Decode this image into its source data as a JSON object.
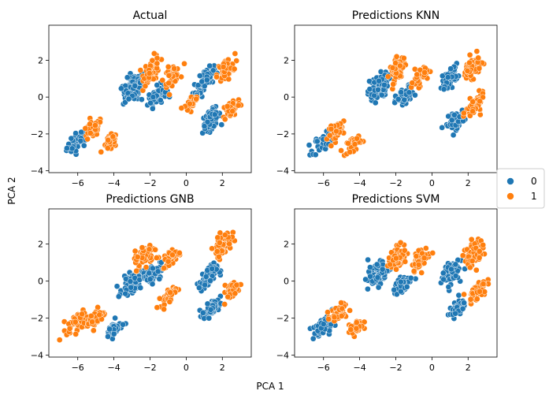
{
  "figure": {
    "xlabel": "PCA 1",
    "ylabel": "PCA 2",
    "legend": {
      "entries": [
        {
          "label": "0",
          "color": "#1f77b4"
        },
        {
          "label": "1",
          "color": "#ff7f0e"
        }
      ],
      "placement": "right-center"
    }
  },
  "chart_data": [
    {
      "type": "scatter",
      "title": "Actual",
      "xlim": [
        -7.6,
        3.6
      ],
      "ylim": [
        -4.1,
        3.9
      ],
      "xticks": [
        -6,
        -4,
        -2,
        0,
        2
      ],
      "yticks": [
        -4,
        -2,
        0,
        2
      ],
      "series": [
        {
          "name": "0",
          "color": "#1f77b4",
          "clusters": [
            {
              "center": [
                -6.0,
                -2.4
              ],
              "spread": [
                0.55,
                0.45
              ],
              "count": 40
            },
            {
              "center": [
                -2.9,
                0.5
              ],
              "spread": [
                0.55,
                0.65
              ],
              "count": 110
            },
            {
              "center": [
                -1.6,
                0.1
              ],
              "spread": [
                0.45,
                0.45
              ],
              "count": 60
            },
            {
              "center": [
                1.1,
                1.0
              ],
              "spread": [
                0.4,
                0.45
              ],
              "count": 60
            },
            {
              "center": [
                1.4,
                -1.2
              ],
              "spread": [
                0.45,
                0.45
              ],
              "count": 70
            },
            {
              "center": [
                0.6,
                0.2
              ],
              "spread": [
                0.3,
                0.3
              ],
              "count": 25
            }
          ]
        },
        {
          "name": "1",
          "color": "#ff7f0e",
          "clusters": [
            {
              "center": [
                -5.2,
                -1.8
              ],
              "spread": [
                0.5,
                0.4
              ],
              "count": 40
            },
            {
              "center": [
                -4.2,
                -2.5
              ],
              "spread": [
                0.35,
                0.35
              ],
              "count": 35
            },
            {
              "center": [
                -1.9,
                1.5
              ],
              "spread": [
                0.4,
                0.6
              ],
              "count": 60
            },
            {
              "center": [
                -0.8,
                1.2
              ],
              "spread": [
                0.4,
                0.45
              ],
              "count": 40
            },
            {
              "center": [
                2.2,
                1.5
              ],
              "spread": [
                0.45,
                0.5
              ],
              "count": 60
            },
            {
              "center": [
                2.5,
                -0.6
              ],
              "spread": [
                0.45,
                0.45
              ],
              "count": 55
            },
            {
              "center": [
                0.3,
                -0.3
              ],
              "spread": [
                0.35,
                0.3
              ],
              "count": 30
            }
          ]
        }
      ]
    },
    {
      "type": "scatter",
      "title": "Predictions KNN",
      "xlim": [
        -7.6,
        3.6
      ],
      "ylim": [
        -4.1,
        3.9
      ],
      "xticks": [
        -6,
        -4,
        -2,
        0,
        2
      ],
      "yticks": [
        -4,
        -2,
        0,
        2
      ],
      "series": [
        {
          "name": "0",
          "color": "#1f77b4",
          "clusters": [
            {
              "center": [
                -6.0,
                -2.4
              ],
              "spread": [
                0.55,
                0.45
              ],
              "count": 40
            },
            {
              "center": [
                -3.0,
                0.5
              ],
              "spread": [
                0.5,
                0.6
              ],
              "count": 110
            },
            {
              "center": [
                -1.5,
                0.0
              ],
              "spread": [
                0.45,
                0.45
              ],
              "count": 60
            },
            {
              "center": [
                1.0,
                1.1
              ],
              "spread": [
                0.4,
                0.45
              ],
              "count": 60
            },
            {
              "center": [
                1.3,
                -1.3
              ],
              "spread": [
                0.45,
                0.4
              ],
              "count": 70
            }
          ]
        },
        {
          "name": "1",
          "color": "#ff7f0e",
          "clusters": [
            {
              "center": [
                -5.2,
                -1.8
              ],
              "spread": [
                0.5,
                0.4
              ],
              "count": 40
            },
            {
              "center": [
                -4.3,
                -2.5
              ],
              "spread": [
                0.35,
                0.35
              ],
              "count": 35
            },
            {
              "center": [
                -1.9,
                1.5
              ],
              "spread": [
                0.4,
                0.55
              ],
              "count": 60
            },
            {
              "center": [
                -0.7,
                1.1
              ],
              "spread": [
                0.4,
                0.45
              ],
              "count": 40
            },
            {
              "center": [
                2.2,
                1.6
              ],
              "spread": [
                0.45,
                0.5
              ],
              "count": 60
            },
            {
              "center": [
                2.4,
                -0.5
              ],
              "spread": [
                0.45,
                0.45
              ],
              "count": 55
            }
          ]
        }
      ]
    },
    {
      "type": "scatter",
      "title": "Predictions GNB",
      "xlim": [
        -7.6,
        3.6
      ],
      "ylim": [
        -4.1,
        3.9
      ],
      "xticks": [
        -6,
        -4,
        -2,
        0,
        2
      ],
      "yticks": [
        -4,
        -2,
        0,
        2
      ],
      "series": [
        {
          "name": "0",
          "color": "#1f77b4",
          "clusters": [
            {
              "center": [
                -4.0,
                -2.6
              ],
              "spread": [
                0.4,
                0.4
              ],
              "count": 40
            },
            {
              "center": [
                -3.0,
                -0.1
              ],
              "spread": [
                0.5,
                0.45
              ],
              "count": 70
            },
            {
              "center": [
                -1.9,
                0.4
              ],
              "spread": [
                0.45,
                0.45
              ],
              "count": 60
            },
            {
              "center": [
                1.2,
                0.2
              ],
              "spread": [
                0.45,
                0.5
              ],
              "count": 70
            },
            {
              "center": [
                1.4,
                -1.5
              ],
              "spread": [
                0.45,
                0.35
              ],
              "count": 60
            }
          ]
        },
        {
          "name": "1",
          "color": "#ff7f0e",
          "clusters": [
            {
              "center": [
                -6.0,
                -2.2
              ],
              "spread": [
                0.55,
                0.45
              ],
              "count": 50
            },
            {
              "center": [
                -5.0,
                -2.0
              ],
              "spread": [
                0.45,
                0.45
              ],
              "count": 40
            },
            {
              "center": [
                -2.3,
                1.4
              ],
              "spread": [
                0.5,
                0.5
              ],
              "count": 90
            },
            {
              "center": [
                -0.8,
                1.3
              ],
              "spread": [
                0.45,
                0.4
              ],
              "count": 45
            },
            {
              "center": [
                2.0,
                2.0
              ],
              "spread": [
                0.45,
                0.5
              ],
              "count": 60
            },
            {
              "center": [
                2.5,
                -0.5
              ],
              "spread": [
                0.45,
                0.4
              ],
              "count": 50
            },
            {
              "center": [
                -1.0,
                -0.8
              ],
              "spread": [
                0.4,
                0.35
              ],
              "count": 35
            }
          ]
        }
      ]
    },
    {
      "type": "scatter",
      "title": "Predictions SVM",
      "xlim": [
        -7.6,
        3.6
      ],
      "ylim": [
        -4.1,
        3.9
      ],
      "xticks": [
        -6,
        -4,
        -2,
        0,
        2
      ],
      "yticks": [
        -4,
        -2,
        0,
        2
      ],
      "series": [
        {
          "name": "0",
          "color": "#1f77b4",
          "clusters": [
            {
              "center": [
                -6.0,
                -2.5
              ],
              "spread": [
                0.55,
                0.45
              ],
              "count": 40
            },
            {
              "center": [
                -3.0,
                0.4
              ],
              "spread": [
                0.5,
                0.55
              ],
              "count": 100
            },
            {
              "center": [
                -1.6,
                -0.2
              ],
              "spread": [
                0.45,
                0.4
              ],
              "count": 50
            },
            {
              "center": [
                1.0,
                0.5
              ],
              "spread": [
                0.45,
                0.6
              ],
              "count": 70
            },
            {
              "center": [
                1.4,
                -1.5
              ],
              "spread": [
                0.4,
                0.35
              ],
              "count": 50
            }
          ]
        },
        {
          "name": "1",
          "color": "#ff7f0e",
          "clusters": [
            {
              "center": [
                -5.2,
                -1.8
              ],
              "spread": [
                0.5,
                0.4
              ],
              "count": 40
            },
            {
              "center": [
                -4.2,
                -2.5
              ],
              "spread": [
                0.35,
                0.35
              ],
              "count": 35
            },
            {
              "center": [
                -1.9,
                1.3
              ],
              "spread": [
                0.45,
                0.55
              ],
              "count": 70
            },
            {
              "center": [
                -0.6,
                1.2
              ],
              "spread": [
                0.45,
                0.45
              ],
              "count": 50
            },
            {
              "center": [
                2.3,
                1.5
              ],
              "spread": [
                0.45,
                0.6
              ],
              "count": 70
            },
            {
              "center": [
                2.5,
                -0.5
              ],
              "spread": [
                0.45,
                0.45
              ],
              "count": 50
            }
          ]
        }
      ]
    }
  ]
}
